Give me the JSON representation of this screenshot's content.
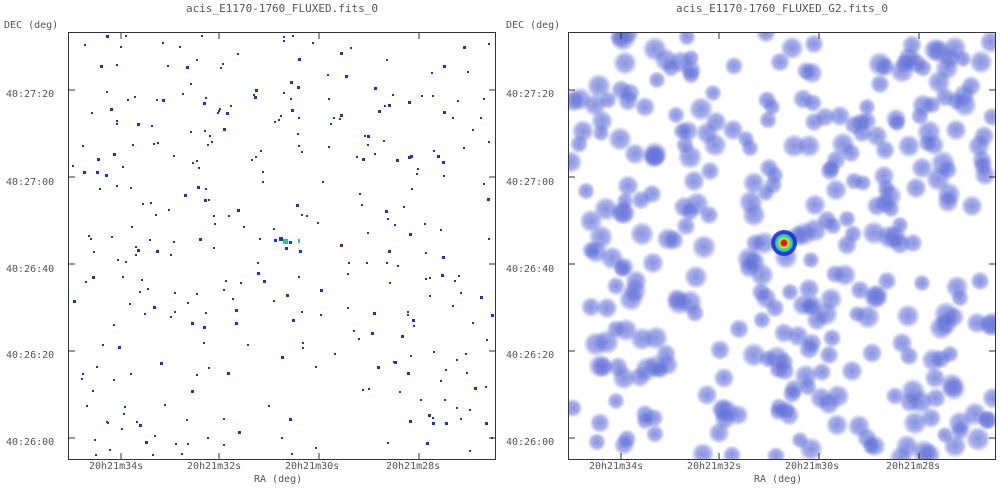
{
  "panels": [
    {
      "title": "acis_E1170-1760_FLUXED.fits_0",
      "ylabel": "DEC (deg)",
      "xlabel": "RA (deg)",
      "yticks": [
        "40:27:20",
        "40:27:00",
        "40:26:40",
        "40:26:20",
        "40:26:00"
      ],
      "xticks": [
        "20h21m34s",
        "20h21m32s",
        "20h21m30s",
        "20h21m28s"
      ],
      "point_color": "#1f2fd0",
      "source_colors": [
        "#1f2fd0",
        "#22b8e0",
        "#3fd23f"
      ]
    },
    {
      "title": "acis_E1170-1760_FLUXED_G2.fits_0",
      "ylabel": "DEC (deg)",
      "xlabel": "RA (deg)",
      "yticks": [
        "40:27:20",
        "40:27:00",
        "40:26:40",
        "40:26:20",
        "40:26:00"
      ],
      "xticks": [
        "20h21m34s",
        "20h21m32s",
        "20h21m30s",
        "20h21m28s"
      ],
      "blob_color": "#5f6fd8",
      "source_colors": [
        "#1a2bd0",
        "#22c0e6",
        "#38e06a",
        "#f0e020",
        "#e02020"
      ]
    }
  ]
}
